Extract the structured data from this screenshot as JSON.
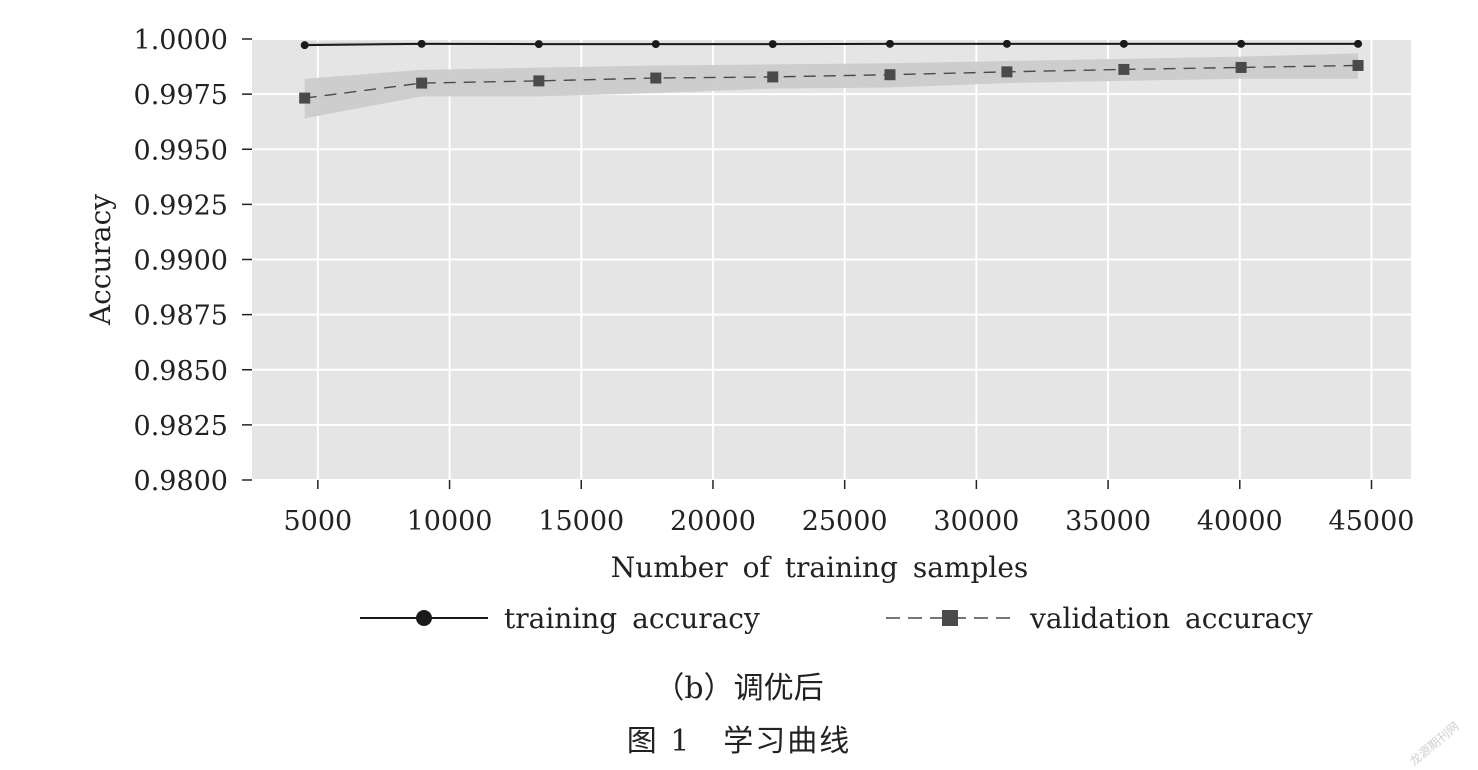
{
  "chart_data": {
    "type": "line",
    "title": "",
    "xlabel": "Number of training samples",
    "ylabel": "Accuracy",
    "xlim": [
      2500,
      46500
    ],
    "ylim": [
      0.98,
      1.0
    ],
    "xticks": [
      5000,
      10000,
      15000,
      20000,
      25000,
      30000,
      35000,
      40000,
      45000
    ],
    "yticks": [
      "1.0000",
      "0.9975",
      "0.9950",
      "0.9925",
      "0.9900",
      "0.9875",
      "0.9850",
      "0.9825",
      "0.9800"
    ],
    "grid": true,
    "legend_position": "bottom",
    "x": [
      4500,
      8940,
      13390,
      17830,
      22270,
      26720,
      31160,
      35600,
      40050,
      44490
    ],
    "series": [
      {
        "name": "training accuracy",
        "values": [
          0.99972,
          0.99978,
          0.99977,
          0.99977,
          0.99977,
          0.99978,
          0.99978,
          0.99978,
          0.99978,
          0.99978
        ],
        "band_low": [
          0.9997,
          0.99975,
          0.99975,
          0.99975,
          0.99975,
          0.99976,
          0.99976,
          0.99977,
          0.99977,
          0.99977
        ],
        "band_high": [
          0.99985,
          0.99985,
          0.99983,
          0.99983,
          0.99983,
          0.99983,
          0.99984,
          0.99984,
          0.99985,
          0.99985
        ],
        "style": "solid",
        "marker": "circle",
        "color": "#1a1a1a"
      },
      {
        "name": "validation accuracy",
        "values": [
          0.99732,
          0.998,
          0.9981,
          0.99823,
          0.99828,
          0.99838,
          0.99851,
          0.99862,
          0.99871,
          0.9988
        ],
        "band_low": [
          0.9964,
          0.9974,
          0.9974,
          0.99755,
          0.99775,
          0.9978,
          0.998,
          0.9981,
          0.9982,
          0.9982
        ],
        "band_high": [
          0.9982,
          0.9986,
          0.9987,
          0.9988,
          0.99885,
          0.9989,
          0.999,
          0.9991,
          0.9992,
          0.99935
        ],
        "style": "dashed",
        "marker": "square",
        "color": "#4a4a4a"
      }
    ]
  },
  "colors": {
    "plot_background": "#e5e5e5",
    "band": "#cbcbcb",
    "gridline": "#ffffff"
  },
  "captions": {
    "subcaption": "（b）调优后",
    "figure_caption": "图 1　学习曲线"
  },
  "watermark": "龙源期刊网"
}
